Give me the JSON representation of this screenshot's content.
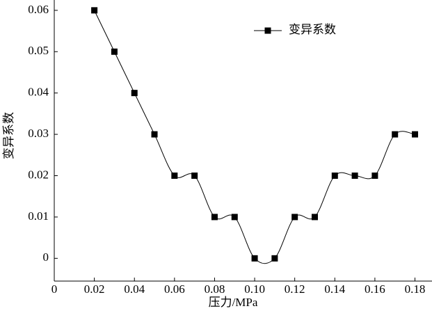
{
  "chart_data": {
    "type": "line",
    "x_label": "压力/MPa",
    "y_label": "变异系数",
    "x": [
      0.02,
      0.03,
      0.04,
      0.05,
      0.06,
      0.07,
      0.08,
      0.09,
      0.1,
      0.11,
      0.12,
      0.13,
      0.14,
      0.15,
      0.16,
      0.17,
      0.18
    ],
    "series": [
      {
        "name": "变异系数",
        "color": "#000000",
        "values": [
          0.06,
          0.05,
          0.04,
          0.03,
          0.02,
          0.02,
          0.01,
          0.01,
          0,
          0,
          0.01,
          0.01,
          0.02,
          0.02,
          0.02,
          0.03,
          0.03
        ]
      }
    ],
    "xlim": [
      0,
      0.1885
    ],
    "ylim": [
      -0.0055,
      0.0625
    ],
    "xticks": [
      0,
      0.02,
      0.04,
      0.06,
      0.08,
      {
        "value": 0.1,
        "label": "0.10"
      },
      0.12,
      0.14,
      0.16,
      0.18
    ],
    "yticks": [
      0,
      0.01,
      0.02,
      0.03,
      0.04,
      0.05,
      0.06
    ],
    "smooth": true,
    "legend": "top-right"
  }
}
